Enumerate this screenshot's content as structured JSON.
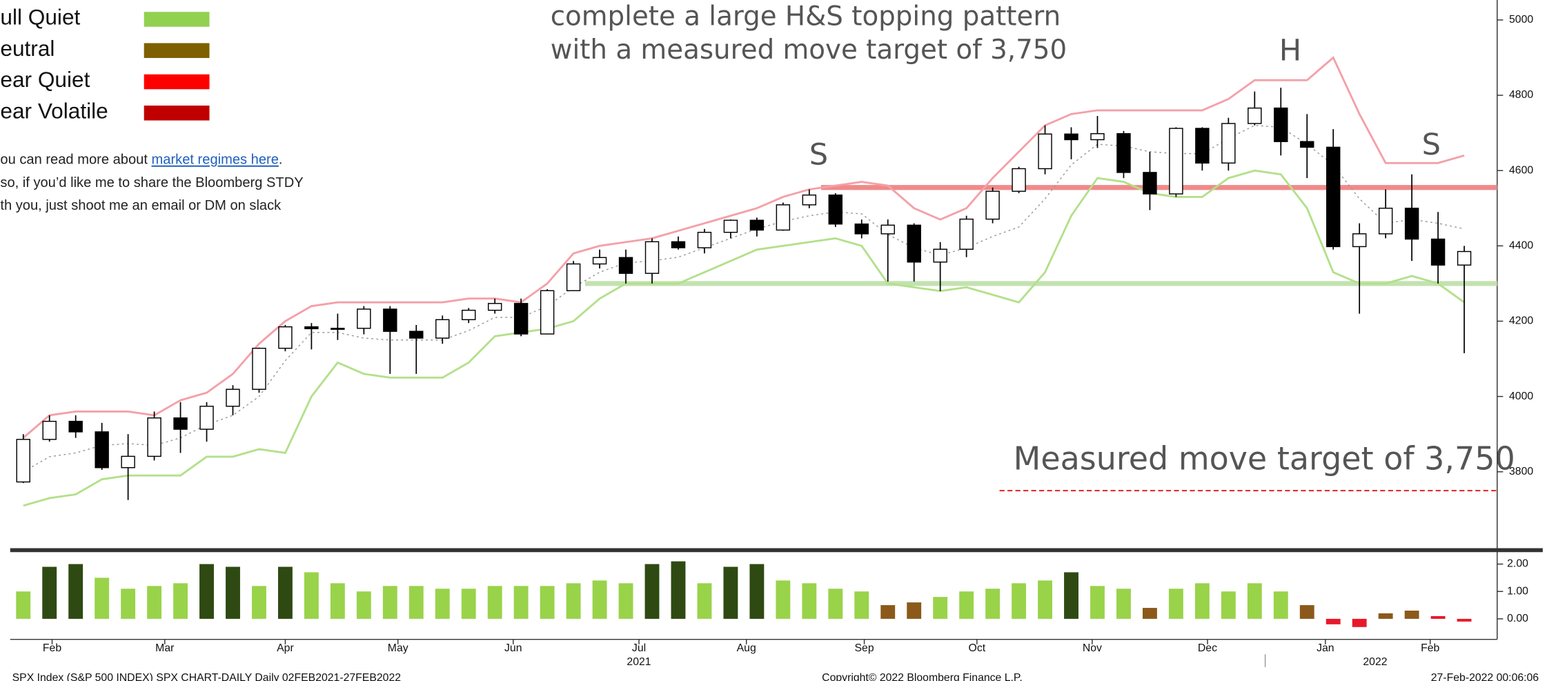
{
  "chart_data": {
    "type": "candlestick",
    "annotations": [
      "complete a large H&S topping pattern",
      "with a measured move target of 3,750",
      "S",
      "H",
      "S",
      "Measured move target of 3,750"
    ],
    "legend": [
      {
        "name": "ull Quiet",
        "color": "#92d050"
      },
      {
        "name": "eutral",
        "color": "#7f6000"
      },
      {
        "name": "ear Quiet",
        "color": "#ff0000"
      },
      {
        "name": "ear Volatile",
        "color": "#c00000"
      }
    ],
    "notes": [
      "ou can read more about ",
      "market regimes here",
      ".",
      "so, if you’d like me to share the Bloomberg STDY",
      "th you, just shoot me an email or DM on slack"
    ],
    "open": [
      3773,
      3886,
      3934,
      3906,
      3811,
      3841,
      3943,
      3913,
      3974,
      4019,
      4128,
      4185,
      4180,
      4181,
      4232,
      4173,
      4155,
      4204,
      4229,
      4247,
      4166,
      4281,
      4352,
      4369,
      4327,
      4411,
      4395,
      4436,
      4468,
      4442,
      4509,
      4535,
      4458,
      4432,
      4455,
      4357,
      4391,
      4471,
      4545,
      4605,
      4697,
      4682,
      4698,
      4595,
      4538,
      4712,
      4620,
      4725,
      4766,
      4677,
      4662,
      4398,
      4432,
      4500,
      4418,
      4349
    ],
    "high": [
      3900,
      3950,
      3950,
      3930,
      3900,
      3960,
      3985,
      3985,
      4030,
      4130,
      4190,
      4195,
      4220,
      4240,
      4240,
      4190,
      4215,
      4235,
      4260,
      4260,
      4285,
      4360,
      4390,
      4390,
      4420,
      4425,
      4445,
      4470,
      4475,
      4515,
      4550,
      4540,
      4470,
      4470,
      4460,
      4410,
      4480,
      4555,
      4610,
      4720,
      4715,
      4745,
      4705,
      4650,
      4715,
      4715,
      4740,
      4810,
      4820,
      4750,
      4710,
      4460,
      4550,
      4590,
      4490,
      4400
    ],
    "low": [
      3770,
      3880,
      3890,
      3805,
      3725,
      3830,
      3850,
      3880,
      3950,
      4010,
      4120,
      4125,
      4150,
      4165,
      4060,
      4060,
      4140,
      4195,
      4220,
      4160,
      4165,
      4280,
      4340,
      4300,
      4300,
      4390,
      4380,
      4420,
      4425,
      4440,
      4500,
      4450,
      4420,
      4305,
      4305,
      4280,
      4370,
      4460,
      4540,
      4590,
      4630,
      4660,
      4580,
      4495,
      4530,
      4600,
      4600,
      4720,
      4640,
      4580,
      4390,
      4220,
      4420,
      4360,
      4300,
      4115
    ],
    "close": [
      3886,
      3934,
      3906,
      3811,
      3841,
      3943,
      3913,
      3974,
      4019,
      4128,
      4185,
      4180,
      4181,
      4232,
      4173,
      4155,
      4204,
      4229,
      4247,
      4166,
      4281,
      4352,
      4369,
      4327,
      4411,
      4395,
      4436,
      4468,
      4442,
      4509,
      4535,
      4458,
      4432,
      4455,
      4357,
      4391,
      4471,
      4545,
      4605,
      4697,
      4682,
      4698,
      4595,
      4538,
      4712,
      4620,
      4725,
      4766,
      4677,
      4662,
      4398,
      4432,
      4500,
      4418,
      4349,
      4385
    ],
    "bands": [
      {
        "color": "#f4a0a8",
        "dash": false,
        "values": [
          3890,
          3950,
          3960,
          3960,
          3960,
          3950,
          3990,
          4010,
          4060,
          4140,
          4200,
          4240,
          4250,
          4250,
          4250,
          4250,
          4250,
          4260,
          4260,
          4250,
          4300,
          4380,
          4400,
          4410,
          4420,
          4440,
          4460,
          4480,
          4500,
          4530,
          4550,
          4560,
          4570,
          4560,
          4500,
          4470,
          4500,
          4580,
          4650,
          4720,
          4750,
          4760,
          4760,
          4760,
          4760,
          4760,
          4790,
          4840,
          4840,
          4840,
          4900,
          4750,
          4620,
          4620,
          4620,
          4640
        ]
      },
      {
        "color": "#999999",
        "dash": true,
        "values": [
          3800,
          3840,
          3850,
          3870,
          3875,
          3870,
          3890,
          3925,
          3950,
          4000,
          4095,
          4170,
          4170,
          4155,
          4150,
          4150,
          4150,
          4175,
          4210,
          4210,
          4240,
          4290,
          4330,
          4355,
          4360,
          4370,
          4395,
          4420,
          4445,
          4465,
          4480,
          4490,
          4485,
          4430,
          4395,
          4375,
          4395,
          4425,
          4450,
          4525,
          4615,
          4670,
          4665,
          4650,
          4645,
          4645,
          4685,
          4720,
          4715,
          4670,
          4615,
          4525,
          4460,
          4470,
          4460,
          4445
        ]
      },
      {
        "color": "#b3e08a",
        "dash": false,
        "values": [
          3710,
          3730,
          3740,
          3780,
          3790,
          3790,
          3790,
          3840,
          3840,
          3860,
          3850,
          4000,
          4090,
          4060,
          4050,
          4050,
          4050,
          4090,
          4160,
          4170,
          4180,
          4200,
          4260,
          4300,
          4300,
          4300,
          4330,
          4360,
          4390,
          4400,
          4410,
          4420,
          4400,
          4300,
          4290,
          4280,
          4290,
          4270,
          4250,
          4330,
          4480,
          4580,
          4570,
          4540,
          4530,
          4530,
          4580,
          4600,
          4590,
          4500,
          4330,
          4300,
          4300,
          4320,
          4300,
          4250
        ]
      }
    ],
    "hlines": [
      {
        "value": 4555,
        "color": "#f08a8a",
        "dash": false
      },
      {
        "value": 4300,
        "color": "#c3e2b0",
        "dash": false
      },
      {
        "value": 3750,
        "color": "#e03030",
        "dash": true
      }
    ],
    "xlim": [
      -0.5,
      55.5
    ],
    "xticks": [
      {
        "value": 1.1,
        "label": "Feb"
      },
      {
        "value": 5.4,
        "label": "Mar"
      },
      {
        "value": 10,
        "label": "Apr"
      },
      {
        "value": 14.3,
        "label": "May"
      },
      {
        "value": 18.7,
        "label": "Jun"
      },
      {
        "value": 23.5,
        "label": "Jul"
      },
      {
        "value": 27.6,
        "label": "Aug"
      },
      {
        "value": 32.1,
        "label": "Sep"
      },
      {
        "value": 36.4,
        "label": "Oct"
      },
      {
        "value": 40.8,
        "label": "Nov"
      },
      {
        "value": 45.2,
        "label": "Dec"
      },
      {
        "value": 49.7,
        "label": "Jan"
      },
      {
        "value": 53.7,
        "label": "Feb"
      }
    ],
    "years": [
      {
        "value": 23.5,
        "label": "2021"
      },
      {
        "value": 51.6,
        "label": "2022"
      }
    ],
    "ylim": [
      3605,
      5053
    ],
    "yticks": [
      3800,
      4000,
      4200,
      4400,
      4600,
      4800,
      5000
    ],
    "regime": {
      "values": [
        1.0,
        1.9,
        2.0,
        1.5,
        1.1,
        1.2,
        1.3,
        2.0,
        1.9,
        1.2,
        1.9,
        1.7,
        1.3,
        1.0,
        1.2,
        1.2,
        1.1,
        1.1,
        1.2,
        1.2,
        1.2,
        1.3,
        1.4,
        1.3,
        2.0,
        2.1,
        1.3,
        1.9,
        2.0,
        1.4,
        1.3,
        1.1,
        1.0,
        0.5,
        0.6,
        0.8,
        1.0,
        1.1,
        1.3,
        1.4,
        1.7,
        1.2,
        1.1,
        0.4,
        1.1,
        1.3,
        1.0,
        1.3,
        1.0,
        0.5,
        -0.2,
        -0.3,
        0.2,
        0.3,
        0.1,
        -0.1
      ],
      "colors": [
        "#99d34a",
        "#2e4a12",
        "#2e4a12",
        "#99d34a",
        "#99d34a",
        "#99d34a",
        "#99d34a",
        "#2e4a12",
        "#2e4a12",
        "#99d34a",
        "#2e4a12",
        "#99d34a",
        "#99d34a",
        "#99d34a",
        "#99d34a",
        "#99d34a",
        "#99d34a",
        "#99d34a",
        "#99d34a",
        "#99d34a",
        "#99d34a",
        "#99d34a",
        "#99d34a",
        "#99d34a",
        "#2e4a12",
        "#2e4a12",
        "#99d34a",
        "#2e4a12",
        "#2e4a12",
        "#99d34a",
        "#99d34a",
        "#99d34a",
        "#99d34a",
        "#8b5a1a",
        "#8b5a1a",
        "#99d34a",
        "#99d34a",
        "#99d34a",
        "#99d34a",
        "#99d34a",
        "#2e4a12",
        "#99d34a",
        "#99d34a",
        "#8b5a1a",
        "#99d34a",
        "#99d34a",
        "#99d34a",
        "#99d34a",
        "#99d34a",
        "#8b5a1a",
        "#e8182a",
        "#e8182a",
        "#8b5a1a",
        "#8b5a1a",
        "#e8182a",
        "#e8182a"
      ],
      "ylim": [
        -0.75,
        2.4
      ],
      "yticks": [
        {
          "value": 0,
          "label": "0.00"
        },
        {
          "value": 1,
          "label": "1.00"
        },
        {
          "value": 2,
          "label": "2.00"
        }
      ]
    },
    "footer": [
      "SPX Index (S&P 500 INDEX) SPX CHART-DAILY  Daily 02FEB2021-27FEB2022",
      "Copyright© 2022 Bloomberg Finance L.P.",
      "27-Feb-2022 00:06:06"
    ]
  }
}
